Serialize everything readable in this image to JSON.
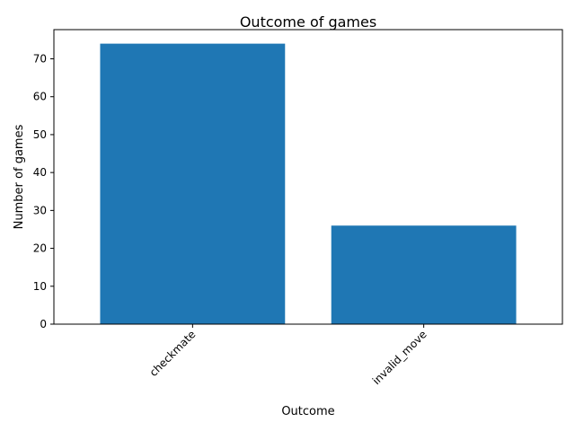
{
  "chart_data": {
    "type": "bar",
    "title": "Outcome of games",
    "xlabel": "Outcome",
    "ylabel": "Number of games",
    "categories": [
      "checkmate",
      "invalid_move"
    ],
    "values": [
      74,
      26
    ],
    "ylim": [
      0,
      77.7
    ],
    "yticks": [
      0,
      10,
      20,
      30,
      40,
      50,
      60,
      70
    ],
    "ytick_labels": [
      "0",
      "10",
      "20",
      "30",
      "40",
      "50",
      "60",
      "70"
    ],
    "bar_color": "#1f77b4",
    "grid": false,
    "xtick_rotation": "45 degrees"
  }
}
